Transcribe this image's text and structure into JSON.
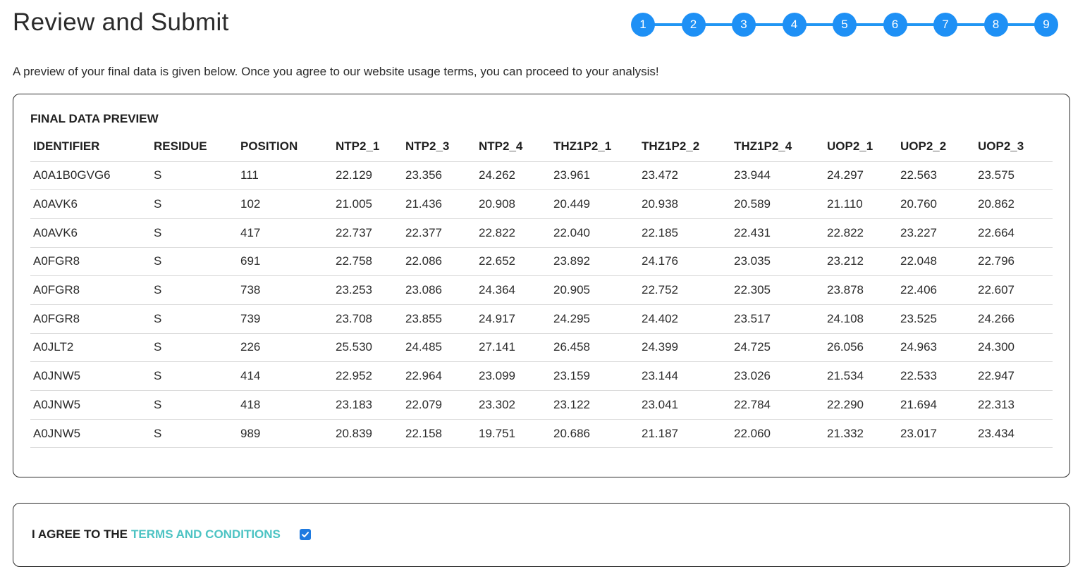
{
  "page": {
    "title": "Review and Submit",
    "intro": "A preview of your final data is given below. Once you agree to our website usage terms, you can proceed to your analysis!"
  },
  "stepper": {
    "color": "#1e90f5",
    "steps": [
      "1",
      "2",
      "3",
      "4",
      "5",
      "6",
      "7",
      "8",
      "9"
    ]
  },
  "preview": {
    "title": "FINAL DATA PREVIEW",
    "columns": [
      "IDENTIFIER",
      "RESIDUE",
      "POSITION",
      "NTP2_1",
      "NTP2_3",
      "NTP2_4",
      "THZ1P2_1",
      "THZ1P2_2",
      "THZ1P2_4",
      "UOP2_1",
      "UOP2_2",
      "UOP2_3"
    ],
    "rows": [
      [
        "A0A1B0GVG6",
        "S",
        "111",
        "22.129",
        "23.356",
        "24.262",
        "23.961",
        "23.472",
        "23.944",
        "24.297",
        "22.563",
        "23.575"
      ],
      [
        "A0AVK6",
        "S",
        "102",
        "21.005",
        "21.436",
        "20.908",
        "20.449",
        "20.938",
        "20.589",
        "21.110",
        "20.760",
        "20.862"
      ],
      [
        "A0AVK6",
        "S",
        "417",
        "22.737",
        "22.377",
        "22.822",
        "22.040",
        "22.185",
        "22.431",
        "22.822",
        "23.227",
        "22.664"
      ],
      [
        "A0FGR8",
        "S",
        "691",
        "22.758",
        "22.086",
        "22.652",
        "23.892",
        "24.176",
        "23.035",
        "23.212",
        "22.048",
        "22.796"
      ],
      [
        "A0FGR8",
        "S",
        "738",
        "23.253",
        "23.086",
        "24.364",
        "20.905",
        "22.752",
        "22.305",
        "23.878",
        "22.406",
        "22.607"
      ],
      [
        "A0FGR8",
        "S",
        "739",
        "23.708",
        "23.855",
        "24.917",
        "24.295",
        "24.402",
        "23.517",
        "24.108",
        "23.525",
        "24.266"
      ],
      [
        "A0JLT2",
        "S",
        "226",
        "25.530",
        "24.485",
        "27.141",
        "26.458",
        "24.399",
        "24.725",
        "26.056",
        "24.963",
        "24.300"
      ],
      [
        "A0JNW5",
        "S",
        "414",
        "22.952",
        "22.964",
        "23.099",
        "23.159",
        "23.144",
        "23.026",
        "21.534",
        "22.533",
        "22.947"
      ],
      [
        "A0JNW5",
        "S",
        "418",
        "23.183",
        "22.079",
        "23.302",
        "23.122",
        "23.041",
        "22.784",
        "22.290",
        "21.694",
        "22.313"
      ],
      [
        "A0JNW5",
        "S",
        "989",
        "20.839",
        "22.158",
        "19.751",
        "20.686",
        "21.187",
        "22.060",
        "21.332",
        "23.017",
        "23.434"
      ]
    ]
  },
  "terms": {
    "prefix": "I AGREE TO THE",
    "link_label": "TERMS AND CONDITIONS",
    "link_color": "#4cc3c3",
    "checked": true,
    "checkbox_color": "#1e7ae0",
    "check_icon": "check-icon"
  }
}
